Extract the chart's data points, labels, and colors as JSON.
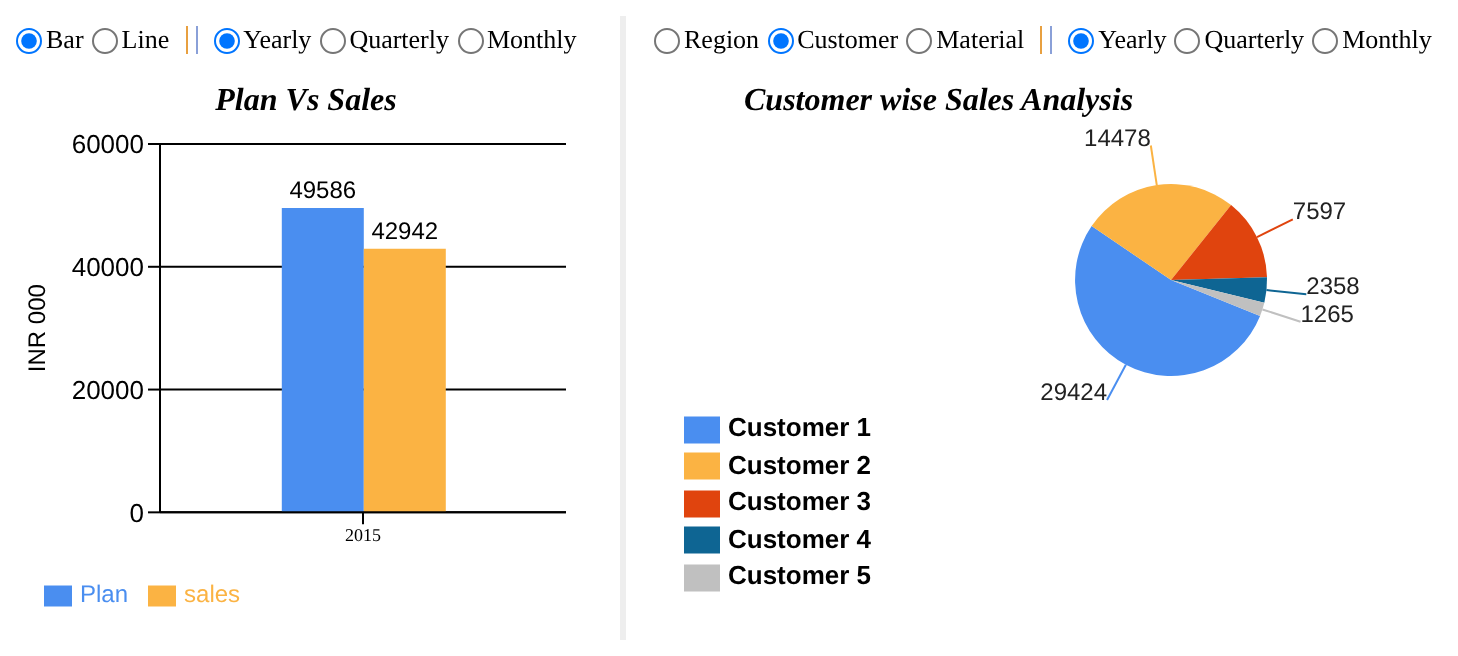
{
  "chart_data": [
    {
      "type": "bar",
      "title": "Plan Vs Sales",
      "ylabel": "INR 000",
      "categories": [
        "2015"
      ],
      "series": [
        {
          "name": "Plan",
          "color": "#4a8ef0",
          "values": [
            49586
          ]
        },
        {
          "name": "sales",
          "color": "#fbb343",
          "values": [
            42942
          ]
        }
      ],
      "ylim": [
        0,
        60000
      ],
      "yticks": [
        0,
        20000,
        40000,
        60000
      ],
      "grid": "y",
      "legend": "bottom left",
      "data_labels": true,
      "annotations": [
        "Bar",
        "Line",
        "Yearly",
        "Quarterly",
        "Monthly"
      ]
    },
    {
      "type": "pie",
      "title": "Customer wise Sales Analysis",
      "categories": [
        "Customer 1",
        "Customer 2",
        "Customer 3",
        "Customer 4",
        "Customer 5"
      ],
      "values": [
        29424,
        14478,
        7597,
        2358,
        1265
      ],
      "colors": [
        "#4a8ef0",
        "#fbb343",
        "#e0440e",
        "#0e6593",
        "#c0c0c0"
      ],
      "legend": "bottom left",
      "data_labels": true,
      "annotations": [
        "Region",
        "Customer",
        "Material",
        "Yearly",
        "Quarterly",
        "Monthly"
      ]
    }
  ]
}
